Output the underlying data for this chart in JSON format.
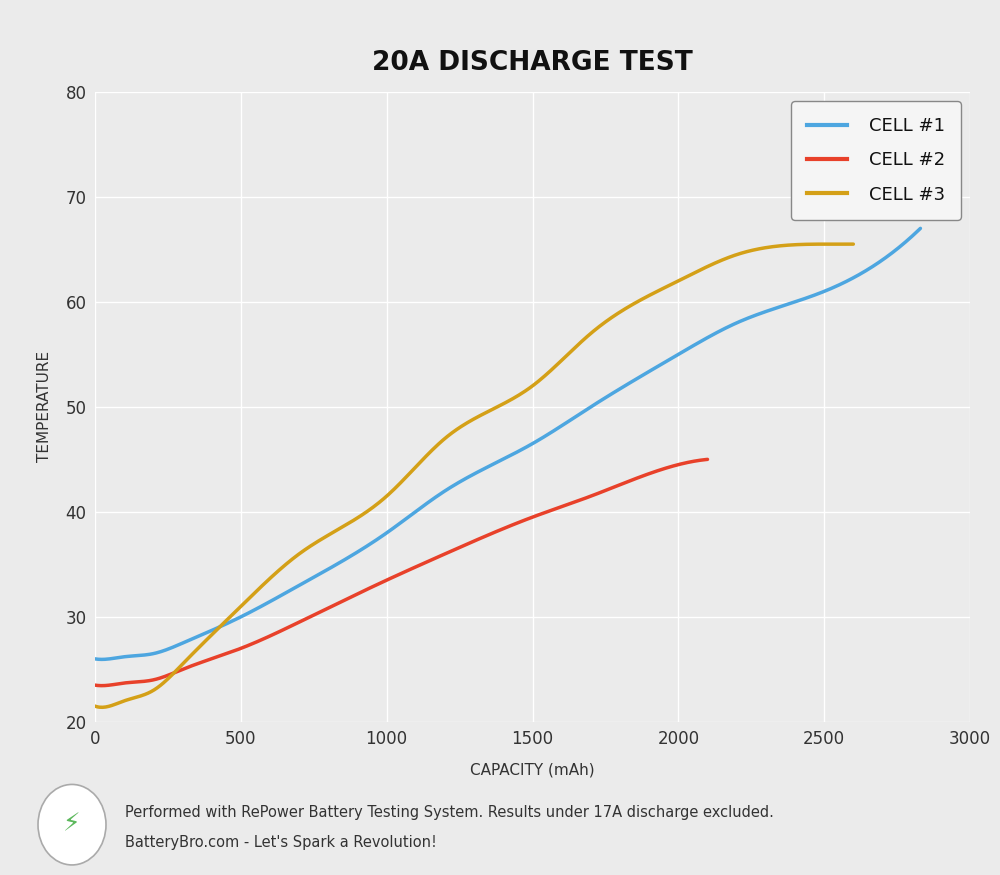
{
  "title": "20A DISCHARGE TEST",
  "xlabel": "CAPACITY (mAh)",
  "ylabel": "TEMPERATURE",
  "xlim": [
    0,
    3000
  ],
  "ylim": [
    20,
    80
  ],
  "yticks": [
    20,
    30,
    40,
    50,
    60,
    70,
    80
  ],
  "xticks": [
    0,
    500,
    1000,
    1500,
    2000,
    2500,
    3000
  ],
  "background_color": "#ebebeb",
  "plot_bg_color": "#ebebeb",
  "footer_bg_color": "#dddddd",
  "cell1_color": "#4da6e0",
  "cell2_color": "#e8412a",
  "cell3_color": "#d4a017",
  "cell1_x": [
    0,
    50,
    100,
    200,
    300,
    500,
    700,
    1000,
    1200,
    1500,
    1700,
    2000,
    2200,
    2500,
    2700,
    2830
  ],
  "cell1_y": [
    26.0,
    26.0,
    26.2,
    26.5,
    27.5,
    30.0,
    33.0,
    38.0,
    42.0,
    46.5,
    50.0,
    55.0,
    58.0,
    61.0,
    64.0,
    67.0
  ],
  "cell2_x": [
    0,
    50,
    100,
    200,
    300,
    500,
    700,
    1000,
    1200,
    1500,
    1700,
    2000,
    2100
  ],
  "cell2_y": [
    23.5,
    23.5,
    23.7,
    24.0,
    25.0,
    27.0,
    29.5,
    33.5,
    36.0,
    39.5,
    41.5,
    44.5,
    45.0
  ],
  "cell3_x": [
    0,
    50,
    100,
    200,
    300,
    500,
    700,
    1000,
    1200,
    1500,
    1700,
    2000,
    2200,
    2500,
    2600
  ],
  "cell3_y": [
    21.5,
    21.5,
    22.0,
    23.0,
    25.5,
    31.0,
    36.0,
    41.5,
    47.0,
    52.0,
    57.0,
    62.0,
    64.5,
    65.5,
    65.5
  ],
  "legend_labels": [
    "CELL #1",
    "CELL #2",
    "CELL #3"
  ],
  "footer_text_line1": "Performed with RePower Battery Testing System. Results under 17A discharge excluded.",
  "footer_text_line2": "BatteryBro.com - Let's Spark a Revolution!",
  "title_fontsize": 19,
  "axis_label_fontsize": 11,
  "tick_fontsize": 12,
  "legend_fontsize": 13,
  "line_width": 2.5,
  "grid_color": "#ffffff",
  "bolt_color": "#5cb85c",
  "text_color": "#333333"
}
